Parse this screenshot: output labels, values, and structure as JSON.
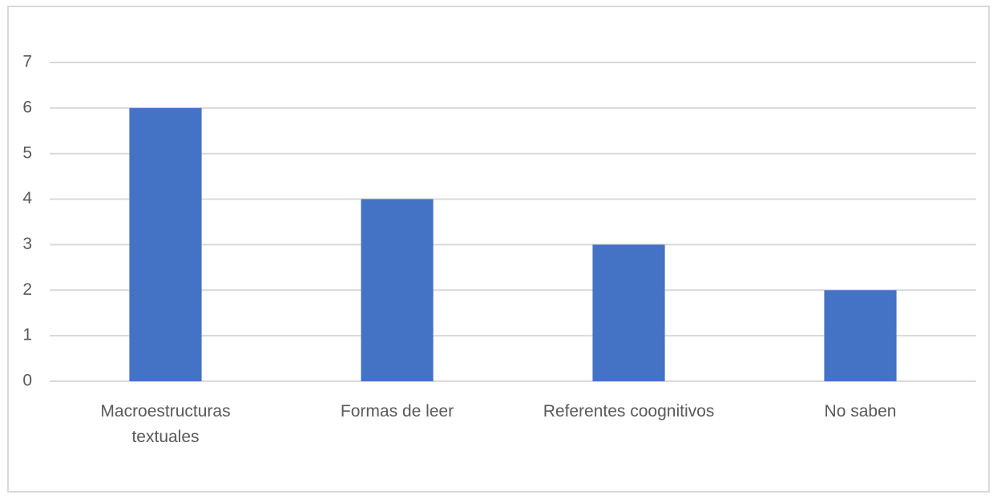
{
  "chart_data": {
    "type": "bar",
    "categories": [
      "Macroestructuras textuales",
      "Formas de leer",
      "Referentes coognitivos",
      "No saben"
    ],
    "values": [
      6,
      4,
      3,
      2
    ],
    "color": "#4472c4",
    "ylim": [
      0,
      7
    ],
    "yticks": [
      0,
      1,
      2,
      3,
      4,
      5,
      6,
      7
    ],
    "grid": true
  }
}
